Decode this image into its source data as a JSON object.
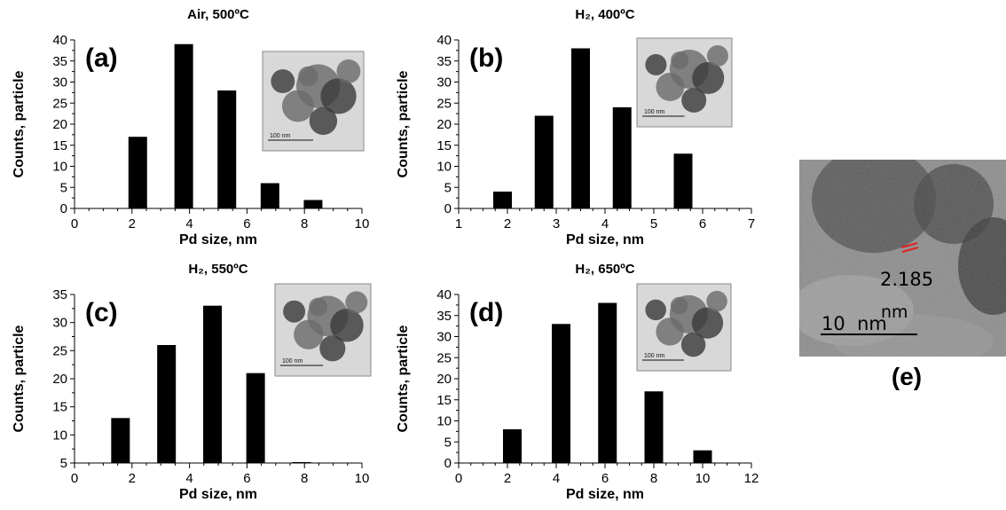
{
  "chart_data": [
    {
      "type": "bar",
      "panel_label": "(a)",
      "title": "Air, 500ºC",
      "xlabel": "Pd size, nm",
      "ylabel": "Counts, particle",
      "xlim": [
        0,
        10
      ],
      "ylim": [
        0,
        40
      ],
      "xticks": [
        0,
        2,
        4,
        6,
        8,
        10
      ],
      "yticks": [
        0,
        5,
        10,
        15,
        20,
        25,
        30,
        35,
        40
      ],
      "x": [
        2.2,
        3.8,
        5.3,
        6.8,
        8.3
      ],
      "values": [
        17,
        39,
        28,
        6,
        2
      ],
      "grid": false,
      "inset_scale_label": "100 nm"
    },
    {
      "type": "bar",
      "panel_label": "(b)",
      "title": "H₂, 400ºC",
      "xlabel": "Pd size, nm",
      "ylabel": "Counts, particle",
      "xlim": [
        1,
        7
      ],
      "ylim": [
        0,
        40
      ],
      "xticks": [
        1,
        2,
        3,
        4,
        5,
        6,
        7
      ],
      "yticks": [
        0,
        5,
        10,
        15,
        20,
        25,
        30,
        35,
        40
      ],
      "x": [
        1.9,
        2.75,
        3.5,
        4.35,
        5.6
      ],
      "values": [
        4,
        22,
        38,
        24,
        13
      ],
      "grid": false,
      "inset_scale_label": "100 nm"
    },
    {
      "type": "bar",
      "panel_label": "(c)",
      "title": "H₂, 550ºC",
      "xlabel": "Pd size, nm",
      "ylabel": "Counts, particle",
      "xlim": [
        0,
        10
      ],
      "ylim": [
        5,
        35
      ],
      "xticks": [
        0,
        2,
        4,
        6,
        8,
        10
      ],
      "yticks": [
        5,
        10,
        15,
        20,
        25,
        30,
        35
      ],
      "x": [
        1.6,
        3.2,
        4.8,
        6.3,
        7.9
      ],
      "values": [
        13,
        26,
        33,
        21,
        5
      ],
      "grid": false,
      "inset_scale_label": "100 nm"
    },
    {
      "type": "bar",
      "panel_label": "(d)",
      "title": "H₂, 650ºC",
      "xlabel": "Pd size, nm",
      "ylabel": "Counts, particle",
      "xlim": [
        0,
        12
      ],
      "ylim": [
        0,
        40
      ],
      "xticks": [
        0,
        2,
        4,
        6,
        8,
        10,
        12
      ],
      "yticks": [
        0,
        5,
        10,
        15,
        20,
        25,
        30,
        35,
        40
      ],
      "x": [
        2.2,
        4.2,
        6.1,
        8.0,
        10.0
      ],
      "values": [
        8,
        33,
        38,
        17,
        3
      ],
      "grid": false,
      "inset_scale_label": "100 nm"
    }
  ],
  "panel_e": {
    "label": "(e)",
    "lattice_spacing": "2.185",
    "lattice_unit": "nm",
    "scale_bar": "10  nm"
  },
  "colors": {
    "bar": "#000000",
    "axis": "#000000",
    "lattice_marker": "#e02020",
    "tem_background": "#7c7c7c",
    "inset_background": "#d9d9d9"
  }
}
